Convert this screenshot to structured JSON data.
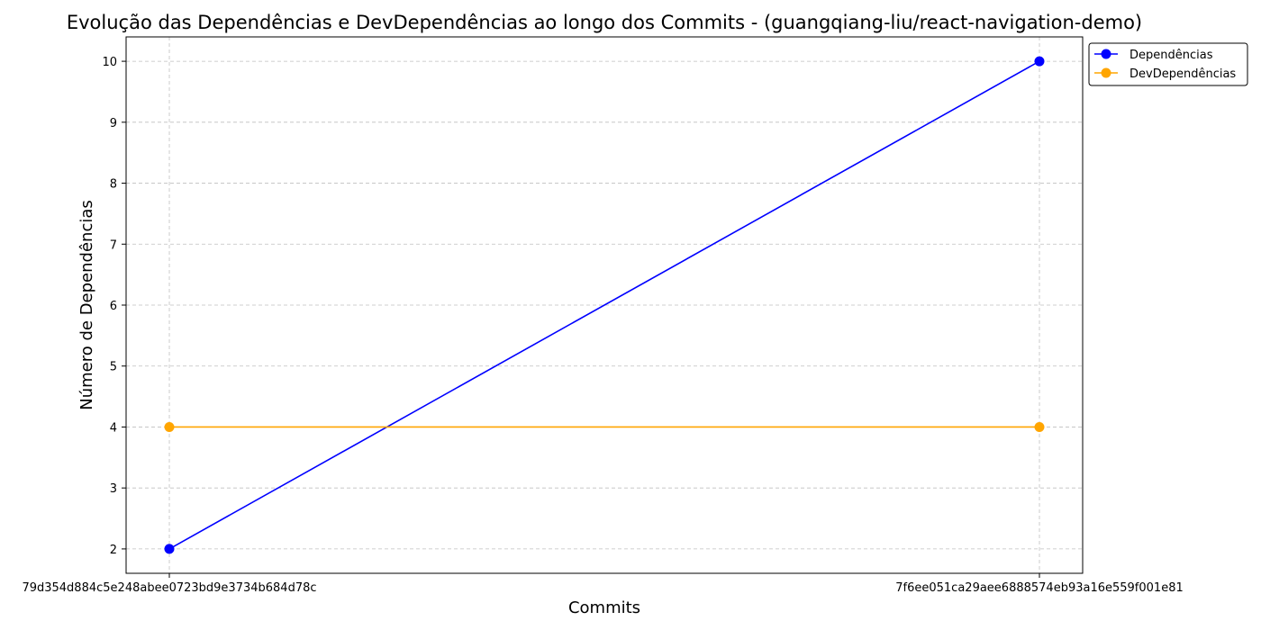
{
  "chart_data": {
    "type": "line",
    "title": "Evolução das Dependências e DevDependências ao longo dos Commits - (guangqiang-liu/react-navigation-demo)",
    "xlabel": "Commits",
    "ylabel": "Número de Dependências",
    "categories": [
      "79d354d884c5e248abee0723bd9e3734b684d78c",
      "7f6ee051ca29aee6888574eb93a16e559f001e81"
    ],
    "series": [
      {
        "name": "Dependências",
        "values": [
          2,
          10
        ],
        "color": "#0000ff"
      },
      {
        "name": "DevDependências",
        "values": [
          4,
          4
        ],
        "color": "#ffa500"
      }
    ],
    "ylim": [
      1.6,
      10.4
    ],
    "yticks": [
      2,
      3,
      4,
      5,
      6,
      7,
      8,
      9,
      10
    ],
    "grid": true,
    "legend_position": "top-right-outside"
  }
}
